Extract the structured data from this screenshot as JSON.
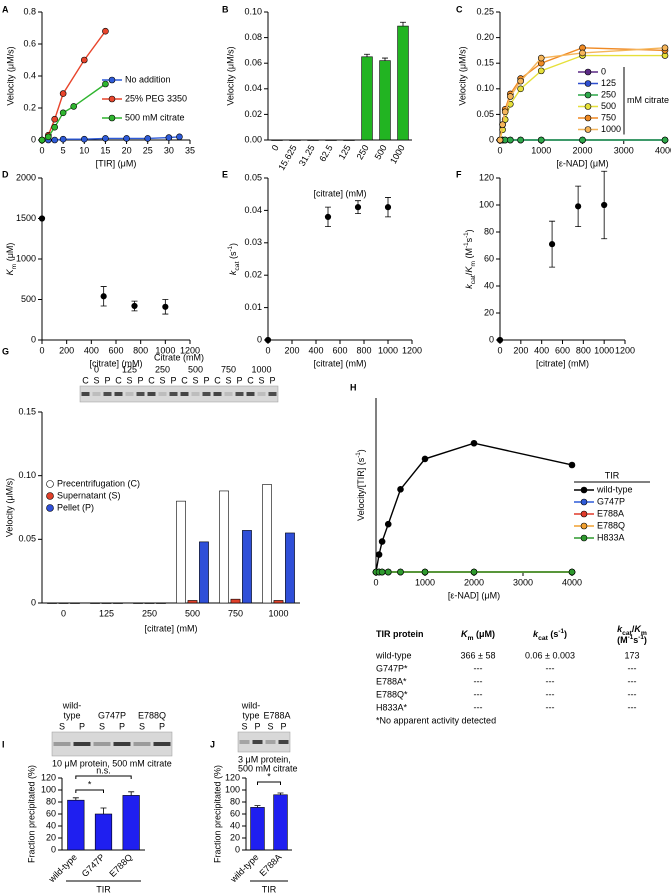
{
  "chart_data": [
    {
      "label": "A",
      "type": "line",
      "ylabel": "Velocity (μM/s)",
      "xlabel": "[TIR] (μM)",
      "xlim": [
        0,
        35
      ],
      "xticks": [
        0,
        5,
        10,
        15,
        20,
        25,
        30,
        35
      ],
      "ylim": [
        0,
        0.8
      ],
      "yticks": [
        0,
        0.2,
        0.4,
        0.6,
        0.8
      ],
      "series": [
        {
          "name": "No addition",
          "color": "#2f5bd8",
          "x": [
            0,
            1.5,
            3,
            5,
            10,
            15,
            20,
            25,
            30,
            32.5
          ],
          "values": [
            0,
            0,
            0,
            0.005,
            0.005,
            0.01,
            0.01,
            0.01,
            0.015,
            0.02
          ]
        },
        {
          "name": "25% PEG 3350",
          "color": "#e8452c",
          "x": [
            0,
            1.5,
            3,
            5,
            10,
            15
          ],
          "values": [
            0,
            0.03,
            0.13,
            0.29,
            0.5,
            0.68
          ]
        },
        {
          "name": "500 mM citrate",
          "color": "#2fb52f",
          "x": [
            0,
            1.5,
            3,
            5,
            7.5,
            15
          ],
          "values": [
            0,
            0.02,
            0.08,
            0.17,
            0.21,
            0.35
          ]
        }
      ]
    },
    {
      "label": "B",
      "type": "bar",
      "ylabel": "Velocity (μM/s)",
      "xlabel": "[citrate] (mM)",
      "categories": [
        "0",
        "15.625",
        "31.25",
        "62.5",
        "125",
        "250",
        "500",
        "1000"
      ],
      "values": [
        0,
        0,
        0,
        0,
        0,
        0.065,
        0.062,
        0.089
      ],
      "errors": [
        0,
        0,
        0,
        0,
        0,
        0.002,
        0.002,
        0.003
      ],
      "color": "#22b422",
      "ylim": [
        0,
        0.1
      ],
      "yticks": [
        {
          "value": 0,
          "label": "0.00"
        },
        0.02,
        0.04,
        0.06,
        0.08,
        {
          "value": 0.1,
          "label": "0.10"
        }
      ]
    },
    {
      "label": "C",
      "type": "line",
      "ylabel": "Velocity (μM/s)",
      "xlabel": "[ε-NAD] (μM)",
      "legend_title": "mM citrate",
      "xlim": [
        0,
        4000
      ],
      "xticks": [
        0,
        1000,
        2000,
        3000,
        4000
      ],
      "ylim": [
        0,
        0.25
      ],
      "yticks": [
        0,
        0.05,
        {
          "value": 0.1,
          "label": "0.10"
        },
        0.15,
        {
          "value": 0.2,
          "label": "0.20"
        },
        0.25
      ],
      "x": [
        0,
        62.5,
        125,
        250,
        500,
        1000,
        2000,
        4000
      ],
      "series": [
        {
          "name": "0",
          "color": "#5b2a86",
          "values": [
            0,
            0,
            0,
            0,
            0,
            0,
            0,
            0
          ]
        },
        {
          "name": "125",
          "color": "#2f4fd0",
          "values": [
            0,
            0,
            0,
            0,
            0,
            0,
            0,
            0
          ]
        },
        {
          "name": "250",
          "color": "#2ea84a",
          "values": [
            0,
            0,
            0,
            0,
            0,
            0,
            0,
            0
          ]
        },
        {
          "name": "500",
          "color": "#e6e03a",
          "values": [
            0,
            0.02,
            0.04,
            0.07,
            0.1,
            0.135,
            0.165,
            0.165
          ]
        },
        {
          "name": "750",
          "color": "#f08a24",
          "values": [
            0,
            0.03,
            0.06,
            0.09,
            0.12,
            0.15,
            0.18,
            0.175
          ]
        },
        {
          "name": "1000",
          "color": "#f5b55a",
          "values": [
            0,
            0.03,
            0.055,
            0.085,
            0.115,
            0.16,
            0.17,
            0.18
          ]
        }
      ]
    },
    {
      "label": "D",
      "type": "scatter",
      "ylabel": [
        {
          "text": "K",
          "italic": true
        },
        {
          "text": "m",
          "sub": true
        },
        {
          "text": " (μM)"
        }
      ],
      "xlabel": "[citrate] (mM)",
      "xlim": [
        0,
        1200
      ],
      "xticks": [
        0,
        200,
        400,
        600,
        800,
        1000,
        1200
      ],
      "ylim": [
        0,
        2000
      ],
      "yticks": [
        0,
        500,
        1000,
        1500,
        2000
      ],
      "x": [
        0,
        500,
        750,
        1000
      ],
      "values": [
        1500,
        540,
        420,
        410
      ],
      "errors": [
        0,
        120,
        60,
        90
      ],
      "color": "#000000"
    },
    {
      "label": "E",
      "type": "scatter",
      "ylabel": [
        {
          "text": "k",
          "italic": true
        },
        {
          "text": "cat",
          "sub": true
        },
        {
          "text": " (s"
        },
        {
          "text": "-1",
          "sup": true
        },
        {
          "text": ")"
        }
      ],
      "xlabel": "[citrate] (mM)",
      "xlim": [
        0,
        1200
      ],
      "xticks": [
        0,
        200,
        400,
        600,
        800,
        1000,
        1200
      ],
      "ylim": [
        0,
        0.05
      ],
      "yticks": [
        0,
        0.01,
        0.02,
        0.03,
        0.04,
        0.05
      ],
      "x": [
        0,
        500,
        750,
        1000
      ],
      "values": [
        0,
        0.038,
        0.041,
        0.041
      ],
      "errors": [
        0,
        0.003,
        0.002,
        0.003
      ],
      "color": "#000000"
    },
    {
      "label": "F",
      "type": "scatter",
      "ylabel": [
        {
          "text": "k",
          "italic": true
        },
        {
          "text": "cat",
          "sub": true
        },
        {
          "text": "/"
        },
        {
          "text": "K",
          "italic": true
        },
        {
          "text": "m",
          "sub": true
        },
        {
          "text": " (M"
        },
        {
          "text": "-1",
          "sup": true
        },
        {
          "text": "s"
        },
        {
          "text": "-1",
          "sup": true
        },
        {
          "text": ")"
        }
      ],
      "xlabel": "[citrate] (mM)",
      "xlim": [
        0,
        1200
      ],
      "xticks": [
        0,
        200,
        400,
        600,
        800,
        1000,
        1200
      ],
      "ylim": [
        0,
        120
      ],
      "yticks": [
        0,
        20,
        40,
        60,
        80,
        100,
        120
      ],
      "x": [
        0,
        500,
        750,
        1000
      ],
      "values": [
        0,
        71,
        99,
        100
      ],
      "errors": [
        0,
        17,
        15,
        25
      ],
      "color": "#000000"
    },
    {
      "label": "G",
      "type": "grouped_bar",
      "ylabel": "Velocity (μM/s)",
      "xlabel": "[citrate] (mM)",
      "categories": [
        "0",
        "125",
        "250",
        "500",
        "750",
        "1000"
      ],
      "ylim": [
        0,
        0.15
      ],
      "yticks": [
        0,
        0.05,
        {
          "value": 0.1,
          "label": "0.10"
        },
        0.15
      ],
      "series": [
        {
          "name": "Precentrifugation (C)",
          "color": "#ffffff",
          "values": [
            0,
            0,
            0,
            0.08,
            0.088,
            0.093
          ]
        },
        {
          "name": "Supernatant (S)",
          "color": "#e0402a",
          "values": [
            0,
            0,
            0,
            0.002,
            0.003,
            0.002
          ]
        },
        {
          "name": "Pellet (P)",
          "color": "#2f4fd8",
          "values": [
            0,
            0,
            0,
            0.048,
            0.057,
            0.055
          ]
        }
      ]
    },
    {
      "label": "H",
      "type": "line",
      "ylabel": [
        {
          "text": "Velocity/[TIR] (s"
        },
        {
          "text": "-1",
          "sup": true
        },
        {
          "text": ")"
        }
      ],
      "xlabel": "[ε-NAD] (μM)",
      "legend_title": "TIR",
      "xlim": [
        0,
        4000
      ],
      "xticks": [
        0,
        1000,
        2000,
        3000,
        4000
      ],
      "ylim": [
        0,
        0.2
      ],
      "x": [
        0,
        62.5,
        125,
        250,
        500,
        1000,
        2000,
        4000
      ],
      "series": [
        {
          "name": "wild-type",
          "color": "#000000",
          "values": [
            0,
            0.02,
            0.035,
            0.055,
            0.095,
            0.13,
            0.148,
            0.123
          ]
        },
        {
          "name": "G747P",
          "color": "#2f5bd8",
          "values": [
            0,
            0,
            0,
            0,
            0,
            0,
            0,
            0
          ]
        },
        {
          "name": "E788A",
          "color": "#e03a2a",
          "values": [
            0,
            0,
            0,
            0,
            0,
            0,
            0,
            0
          ]
        },
        {
          "name": "E788Q",
          "color": "#f0a030",
          "values": [
            0,
            0,
            0,
            0,
            0,
            0,
            0,
            0
          ]
        },
        {
          "name": "H833A",
          "color": "#2f9a2f",
          "values": [
            0,
            0,
            0,
            0,
            0,
            0,
            0,
            0
          ]
        }
      ]
    },
    {
      "label": "I",
      "type": "bar",
      "ylabel": "Fraction precipitated (%)",
      "xlabel": "TIR",
      "categories": [
        "wild-type",
        "G747P",
        "E788Q"
      ],
      "values": [
        83,
        60,
        91
      ],
      "errors": [
        4,
        10,
        6
      ],
      "color": "#1f1ff0",
      "ylim": [
        0,
        120
      ],
      "yticks": [
        0,
        20,
        40,
        60,
        80,
        100,
        120
      ],
      "annotations": [
        "*",
        "n.s."
      ]
    },
    {
      "label": "J",
      "type": "bar",
      "ylabel": "Fraction precipitated (%)",
      "xlabel": "TIR",
      "categories": [
        "wild-type",
        "E788A"
      ],
      "values": [
        71,
        92
      ],
      "errors": [
        3,
        3
      ],
      "color": "#1f1ff0",
      "ylim": [
        0,
        120
      ],
      "yticks": [
        0,
        20,
        40,
        60,
        80,
        100,
        120
      ],
      "annotations": [
        "*"
      ]
    }
  ],
  "gels": {
    "G": {
      "title": "Citrate (mM)",
      "lanes": [
        [
          "0"
        ],
        [
          "125"
        ],
        [
          "250"
        ],
        [
          "500"
        ],
        [
          "750"
        ],
        [
          "1000"
        ]
      ],
      "fractions": [
        "C",
        "S",
        "P"
      ]
    },
    "I": {
      "lanes": [
        [
          "wild-",
          "type"
        ],
        [
          "G747P"
        ],
        [
          "E788Q"
        ]
      ],
      "fractions": [
        "S",
        "P"
      ],
      "caption": [
        "10 μM protein, 500 mM citrate"
      ]
    },
    "J": {
      "lanes": [
        [
          "wild-",
          "type"
        ],
        [
          "E788A"
        ]
      ],
      "fractions": [
        "S",
        "P"
      ],
      "caption": [
        "3 μM protein,",
        "500 mM citrate"
      ]
    }
  },
  "table": {
    "headers": [
      [
        [
          {
            "text": "TIR protein"
          }
        ]
      ],
      [
        [
          {
            "text": "K",
            "italic": true
          },
          {
            "text": "m",
            "sub": true
          },
          {
            "text": " (μM)"
          }
        ]
      ],
      [
        [
          {
            "text": "k",
            "italic": true
          },
          {
            "text": "cat",
            "sub": true
          },
          {
            "text": " (s"
          },
          {
            "text": "-1",
            "sup": true
          },
          {
            "text": ")"
          }
        ]
      ],
      [
        [
          {
            "text": "k",
            "italic": true
          },
          {
            "text": "cat",
            "sub": true
          },
          {
            "text": "/"
          },
          {
            "text": "K",
            "italic": true
          },
          {
            "text": "m",
            "sub": true
          }
        ],
        [
          {
            "text": "(M"
          },
          {
            "text": "-1",
            "sup": true
          },
          {
            "text": "s"
          },
          {
            "text": "-1",
            "sup": true
          },
          {
            "text": ")"
          }
        ]
      ]
    ],
    "rows": [
      [
        "wild-type",
        "366 ± 58",
        "0.06 ± 0.003",
        "173"
      ],
      [
        "G747P*",
        "---",
        "---",
        "---"
      ],
      [
        "E788A*",
        "---",
        "---",
        "---"
      ],
      [
        "E788Q*",
        "---",
        "---",
        "---"
      ],
      [
        "H833A*",
        "---",
        "---",
        "---"
      ]
    ],
    "footnote": "*No apparent activity detected"
  }
}
